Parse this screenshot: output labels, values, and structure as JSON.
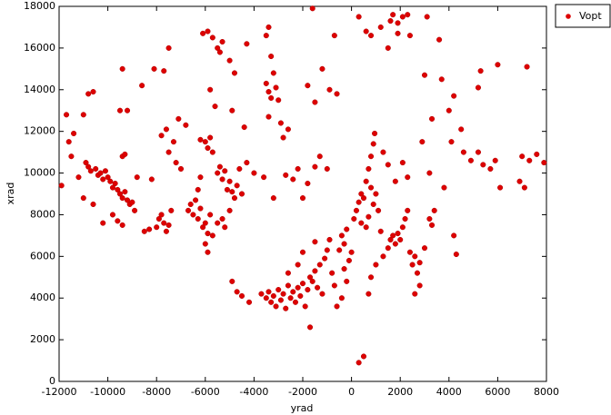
{
  "chart_data": {
    "type": "scatter",
    "xlabel": "yrad",
    "ylabel": "xrad",
    "xlim": [
      -12000,
      8000
    ],
    "ylim": [
      0,
      18000
    ],
    "xticks": [
      -12000,
      -10000,
      -8000,
      -6000,
      -4000,
      -2000,
      0,
      2000,
      4000,
      6000,
      8000
    ],
    "yticks": [
      0,
      2000,
      4000,
      6000,
      8000,
      10000,
      12000,
      14000,
      16000,
      18000
    ],
    "grid": false,
    "legend": "outside-right",
    "series": [
      {
        "name": "Vopt",
        "color": "#dd0000",
        "x": [
          -11900,
          -11700,
          -11600,
          -11500,
          -11400,
          -11200,
          -11000,
          -10900,
          -10800,
          -10700,
          -10600,
          -10500,
          -10400,
          -10300,
          -10200,
          -10100,
          -10000,
          -9900,
          -9800,
          -9700,
          -9600,
          -9500,
          -9400,
          -9300,
          -9200,
          -9100,
          -9000,
          -8900,
          -10800,
          -10600,
          -11000,
          -9800,
          -9600,
          -9400,
          -10200,
          -9400,
          -9300,
          -9500,
          -9400,
          -9200,
          -8500,
          -8300,
          -8000,
          -7900,
          -7800,
          -7700,
          -7600,
          -7500,
          -7400,
          -8200,
          -7800,
          -7600,
          -7500,
          -7300,
          -7200,
          -7000,
          -7700,
          -7500,
          -8100,
          -8600,
          -8800,
          -7100,
          -6800,
          -6700,
          -6600,
          -6500,
          -6400,
          -6300,
          -6200,
          -6100,
          -6000,
          -5900,
          -5800,
          -5700,
          -6300,
          -6200,
          -6000,
          -5900,
          -5500,
          -5300,
          -5200,
          -5000,
          -6000,
          -5900,
          -5800,
          -5700,
          -6200,
          -5500,
          -5400,
          -5300,
          -5200,
          -5100,
          -5000,
          -4900,
          -4800,
          -4700,
          -4600,
          -4500,
          -4300,
          -4000,
          -6100,
          -5900,
          -5700,
          -5500,
          -5400,
          -5300,
          -5000,
          -4800,
          -5800,
          -5600,
          -4900,
          -4400,
          -4300,
          -3500,
          -3400,
          -3300,
          -3200,
          -3500,
          -3400,
          -3300,
          -3100,
          -3000,
          -2900,
          -2800,
          -2600,
          -3400,
          -3600,
          -3200,
          -2700,
          -2400,
          -2200,
          -2000,
          -1800,
          -1500,
          -1300,
          -1000,
          -1800,
          -1500,
          -1200,
          -900,
          -600,
          -1600,
          -4900,
          -4700,
          -4500,
          -4200,
          -3700,
          -3500,
          -3400,
          -3300,
          -3200,
          -3100,
          -3000,
          -2900,
          -2800,
          -2700,
          -2600,
          -2500,
          -2400,
          -2300,
          -2200,
          -2100,
          -2000,
          -1900,
          -1800,
          -1700,
          -1600,
          -1500,
          -1400,
          -1300,
          -1200,
          -1100,
          -1000,
          -900,
          -800,
          -700,
          -1700,
          -2200,
          -2600,
          -2000,
          -1500,
          -500,
          -400,
          -300,
          -200,
          -100,
          0,
          -300,
          -200,
          -400,
          -600,
          100,
          200,
          300,
          400,
          500,
          600,
          700,
          800,
          900,
          950,
          800,
          900,
          700,
          600,
          400,
          1000,
          1100,
          1200,
          1300,
          1000,
          800,
          700,
          1500,
          1600,
          1700,
          1800,
          1900,
          2000,
          2100,
          2200,
          2300,
          2400,
          2500,
          2600,
          2700,
          2800,
          3000,
          3200,
          3300,
          2600,
          2800,
          4300,
          1300,
          1500,
          1800,
          2100,
          2300,
          2900,
          3200,
          3400,
          3800,
          4200,
          4100,
          1600,
          1700,
          1900,
          2100,
          2300,
          1900,
          1500,
          800,
          600,
          300,
          1200,
          2400,
          3100,
          3600,
          3000,
          3700,
          4200,
          4500,
          4600,
          4900,
          5200,
          5400,
          5700,
          5900,
          6100,
          5200,
          5300,
          6000,
          7200,
          7000,
          7300,
          7600,
          7900,
          7100,
          6900,
          300,
          500,
          -700,
          3300,
          4000
        ],
        "values": [
          9400,
          12800,
          11500,
          10800,
          11900,
          9800,
          8800,
          10500,
          10300,
          10100,
          8500,
          10200,
          9900,
          10000,
          9700,
          10100,
          9800,
          9600,
          9300,
          9500,
          9200,
          9000,
          8800,
          9100,
          8700,
          8500,
          8600,
          8200,
          13800,
          13900,
          12800,
          8000,
          7700,
          7500,
          7600,
          10800,
          10900,
          13000,
          15000,
          13000,
          7200,
          7300,
          7400,
          7800,
          8000,
          7600,
          7200,
          7500,
          8200,
          9700,
          11800,
          12100,
          11000,
          11500,
          10500,
          10200,
          14900,
          16000,
          15000,
          14200,
          9800,
          12600,
          12300,
          8200,
          8500,
          8000,
          8700,
          7800,
          8300,
          7400,
          7600,
          7100,
          8000,
          7000,
          9200,
          9800,
          6600,
          6200,
          7600,
          7800,
          7400,
          8200,
          11500,
          11200,
          11700,
          11000,
          11600,
          10000,
          10300,
          9700,
          10100,
          9200,
          9600,
          9100,
          8800,
          9400,
          10200,
          9000,
          10500,
          10000,
          16700,
          16800,
          16500,
          16000,
          15800,
          16300,
          15400,
          14800,
          14000,
          13200,
          13000,
          12200,
          16200,
          16600,
          17000,
          15600,
          14800,
          14300,
          13900,
          13600,
          14100,
          13500,
          12400,
          11700,
          12100,
          12700,
          9800,
          8800,
          9900,
          9700,
          10200,
          8800,
          9500,
          10300,
          10800,
          10200,
          14200,
          13400,
          15000,
          14000,
          13800,
          17900,
          4800,
          4300,
          4100,
          3800,
          4200,
          4000,
          4300,
          3800,
          4100,
          3600,
          4400,
          3900,
          4200,
          3500,
          4600,
          4000,
          4300,
          3800,
          4500,
          4100,
          4700,
          3600,
          4400,
          5000,
          4800,
          5300,
          4500,
          5600,
          4200,
          5900,
          6300,
          6800,
          5200,
          4600,
          2600,
          5600,
          5200,
          6200,
          6700,
          6300,
          7000,
          6600,
          7300,
          5800,
          6200,
          5400,
          4800,
          4000,
          3600,
          7800,
          8200,
          8600,
          9000,
          8800,
          9600,
          10200,
          10800,
          11400,
          11900,
          9300,
          8500,
          7900,
          7400,
          7600,
          9000,
          8200,
          7200,
          6000,
          5600,
          5000,
          4200,
          6400,
          6800,
          7000,
          6600,
          7100,
          6800,
          7400,
          7800,
          8200,
          6200,
          5600,
          6000,
          5200,
          5700,
          6400,
          7800,
          7500,
          4200,
          4600,
          6100,
          11000,
          10400,
          9600,
          10500,
          9800,
          11500,
          10000,
          8200,
          9300,
          7000,
          11500,
          17300,
          17600,
          17200,
          17500,
          17600,
          16700,
          16000,
          16600,
          16800,
          17500,
          17000,
          16600,
          17500,
          16400,
          14700,
          14500,
          13700,
          12100,
          11000,
          10600,
          11000,
          10400,
          10200,
          10600,
          9300,
          14100,
          14900,
          15200,
          15100,
          10800,
          10600,
          10900,
          10500,
          9300,
          9600,
          900,
          1200,
          16600,
          12600,
          13000
        ]
      }
    ]
  }
}
